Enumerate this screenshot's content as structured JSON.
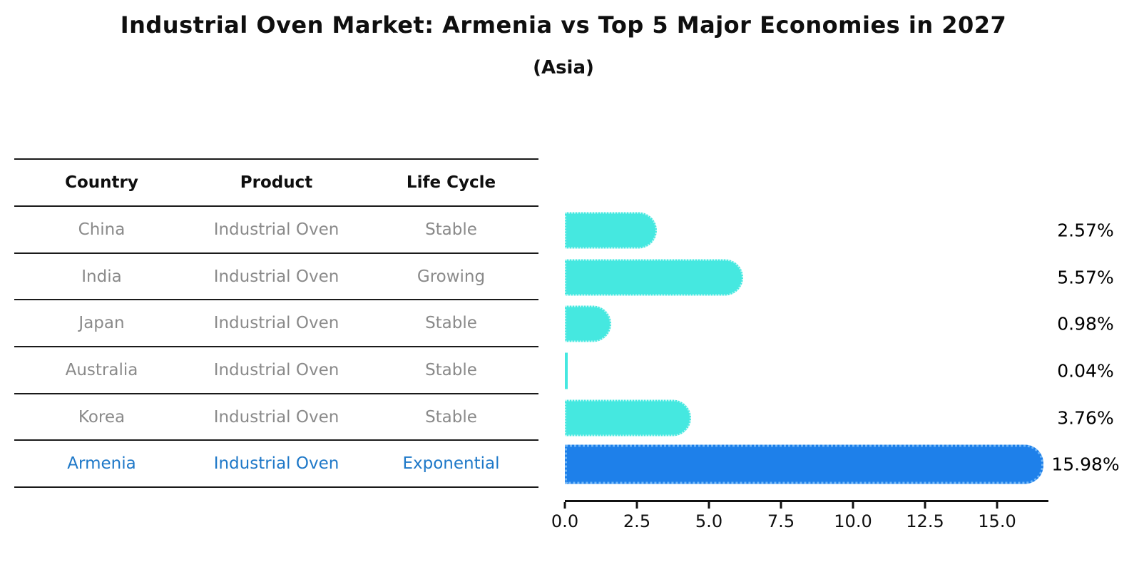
{
  "title": "Industrial Oven Market: Armenia vs Top 5 Major Economies in 2027",
  "subtitle": "(Asia)",
  "table": {
    "headers": [
      "Country",
      "Product",
      "Life Cycle"
    ],
    "rows": [
      {
        "country": "China",
        "product": "Industrial Oven",
        "life_cycle": "Stable",
        "highlight": false
      },
      {
        "country": "India",
        "product": "Industrial Oven",
        "life_cycle": "Growing",
        "highlight": false
      },
      {
        "country": "Japan",
        "product": "Industrial Oven",
        "life_cycle": "Stable",
        "highlight": false
      },
      {
        "country": "Australia",
        "product": "Industrial Oven",
        "life_cycle": "Stable",
        "highlight": false
      },
      {
        "country": "Korea",
        "product": "Industrial Oven",
        "life_cycle": "Stable",
        "highlight": false
      },
      {
        "country": "Armenia",
        "product": "Industrial Oven",
        "life_cycle": "Exponential",
        "highlight": true
      }
    ]
  },
  "chart_data": {
    "type": "bar",
    "orientation": "horizontal",
    "title": "Industrial Oven Market: Armenia vs Top 5 Major Economies in 2027",
    "subtitle": "(Asia)",
    "categories": [
      "China",
      "India",
      "Japan",
      "Australia",
      "Korea",
      "Armenia"
    ],
    "values": [
      2.57,
      5.57,
      0.98,
      0.04,
      3.76,
      15.98
    ],
    "value_labels": [
      "2.57%",
      "5.57%",
      "0.98%",
      "0.04%",
      "3.76%",
      "15.98%"
    ],
    "highlight_index": 5,
    "x_ticks": [
      0.0,
      2.5,
      5.0,
      7.5,
      10.0,
      12.5,
      15.0
    ],
    "xlim": [
      0,
      16.8
    ],
    "grid": false,
    "legend": "none",
    "xlabel": "",
    "ylabel": ""
  },
  "colors": {
    "bar_default": "#45E8E0",
    "bar_highlight": "#1E80EA",
    "highlight_text": "#1E78C8",
    "muted_text": "#8a8a8a",
    "line": "#1a1a1a",
    "title_text": "#0f0f0f"
  }
}
